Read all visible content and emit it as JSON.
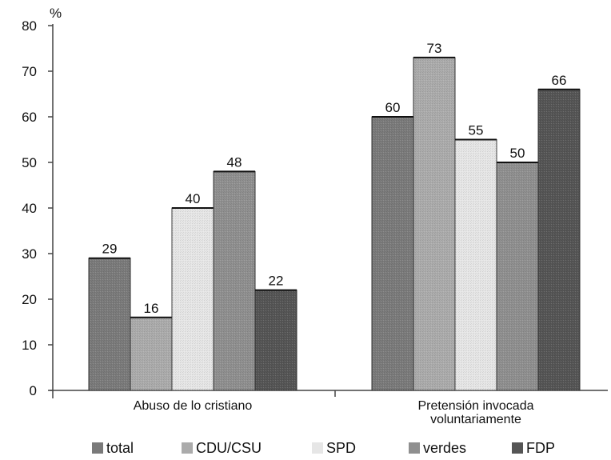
{
  "chart_data": {
    "type": "bar",
    "unit_label": "%",
    "ylim": [
      0,
      80
    ],
    "yticks": [
      0,
      10,
      20,
      30,
      40,
      50,
      60,
      70,
      80
    ],
    "categories": [
      [
        "Abuso de lo cristiano"
      ],
      [
        "Pretensión invocada",
        "voluntariamente"
      ]
    ],
    "series": [
      {
        "name": "total",
        "color": "#7a7a7a",
        "values": [
          29,
          60
        ]
      },
      {
        "name": "CDU/CSU",
        "color": "#ababab",
        "values": [
          16,
          73
        ]
      },
      {
        "name": "SPD",
        "color": "#e6e6e6",
        "values": [
          40,
          55
        ]
      },
      {
        "name": "verdes",
        "color": "#8f8f8f",
        "values": [
          48,
          50
        ]
      },
      {
        "name": "FDP",
        "color": "#555555",
        "values": [
          22,
          66
        ]
      }
    ],
    "grid": false,
    "legend_position": "bottom"
  }
}
